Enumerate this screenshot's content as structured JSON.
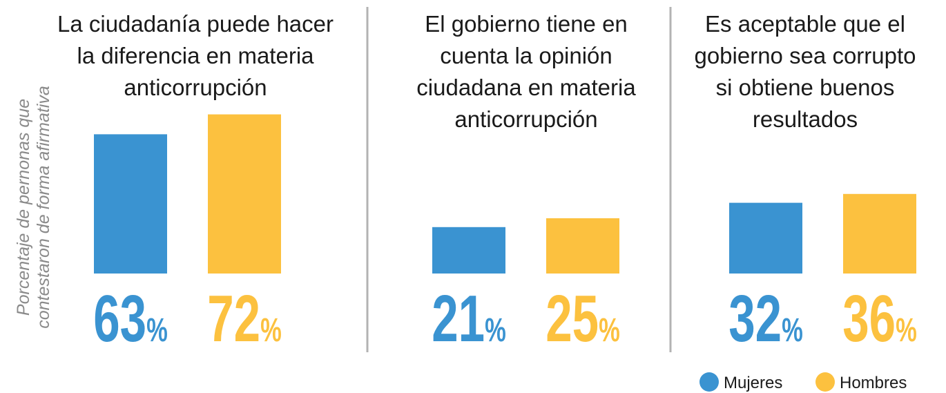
{
  "y_label": [
    "Porcentaje de pernonas que",
    "contestaron de forma afirmativa"
  ],
  "legend": [
    {
      "name": "Mujeres",
      "color": "#3a93d1"
    },
    {
      "name": "Hombres",
      "color": "#fcc13f"
    }
  ],
  "chart_data": [
    {
      "type": "bar",
      "title": [
        "La ciudadanía puede hacer",
        "la diferencia en materia",
        "anticorrupción"
      ],
      "values": [
        63,
        72
      ],
      "value_labels": [
        "63%",
        "72%"
      ],
      "ylim": [
        0,
        100
      ]
    },
    {
      "type": "bar",
      "title": [
        "El gobierno tiene en",
        "cuenta la opinión",
        "ciudadana en materia",
        "anticorrupción"
      ],
      "values": [
        21,
        25
      ],
      "value_labels": [
        "21%",
        "25%"
      ],
      "ylim": [
        0,
        100
      ]
    },
    {
      "type": "bar",
      "title": [
        "Es aceptable que el",
        "gobierno sea corrupto",
        "si obtiene buenos",
        "resultados"
      ],
      "values": [
        32,
        36
      ],
      "value_labels": [
        "32%",
        "36%"
      ],
      "ylim": [
        0,
        100
      ]
    }
  ]
}
